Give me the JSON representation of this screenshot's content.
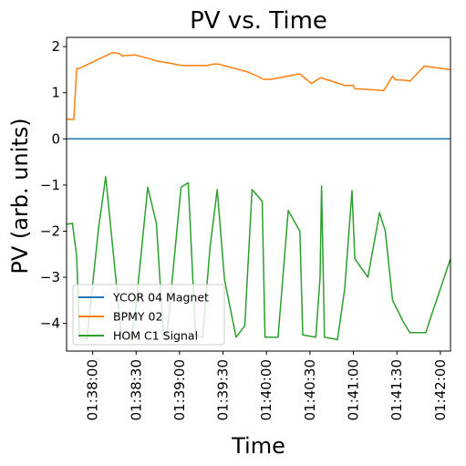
{
  "chart_data": {
    "type": "line",
    "title": "PV vs. Time",
    "xlabel": "Time",
    "ylabel": "PV (arb. units)",
    "xlim": [
      -3,
      262
    ],
    "ylim": [
      -4.6,
      2.2
    ],
    "x_ticks": [
      {
        "value": 15,
        "label": "01:38:00"
      },
      {
        "value": 45,
        "label": "01:38:30"
      },
      {
        "value": 75,
        "label": "01:39:00"
      },
      {
        "value": 105,
        "label": "01:39:30"
      },
      {
        "value": 135,
        "label": "01:40:00"
      },
      {
        "value": 165,
        "label": "01:40:30"
      },
      {
        "value": 195,
        "label": "01:41:00"
      },
      {
        "value": 225,
        "label": "01:41:30"
      },
      {
        "value": 255,
        "label": "01:42:00"
      }
    ],
    "y_ticks": [
      {
        "value": 2,
        "label": "2"
      },
      {
        "value": 1,
        "label": "1"
      },
      {
        "value": 0,
        "label": "0"
      },
      {
        "value": -1,
        "label": "−1"
      },
      {
        "value": -2,
        "label": "−2"
      },
      {
        "value": -3,
        "label": "−3"
      },
      {
        "value": -4,
        "label": "−4"
      }
    ],
    "legend_position": "lower-left",
    "series": [
      {
        "name": "YCOR 04 Magnet",
        "color": "#1f77b4",
        "x": [
          -3,
          262
        ],
        "y": [
          0,
          0
        ]
      },
      {
        "name": "BPMY 02",
        "color": "#ff7f0e",
        "x": [
          -3,
          1,
          2,
          4,
          6,
          28,
          30,
          34,
          35,
          44,
          53,
          56,
          60,
          61,
          77,
          94,
          98,
          102,
          122,
          130,
          133,
          138,
          158,
          166,
          172,
          173,
          189,
          195,
          196,
          216,
          222,
          224,
          231,
          234,
          244,
          248,
          262
        ],
        "y": [
          0.43,
          0.42,
          0.42,
          1.52,
          1.53,
          1.86,
          1.87,
          1.84,
          1.8,
          1.82,
          1.75,
          1.72,
          1.68,
          1.68,
          1.59,
          1.59,
          1.62,
          1.62,
          1.45,
          1.34,
          1.29,
          1.29,
          1.41,
          1.2,
          1.32,
          1.32,
          1.16,
          1.16,
          1.09,
          1.05,
          1.36,
          1.28,
          1.27,
          1.25,
          1.58,
          1.56,
          1.5
        ]
      },
      {
        "name": "HOM C1 Signal",
        "color": "#2ca02c",
        "x": [
          -3,
          1,
          4,
          6,
          11,
          19,
          24,
          35,
          41,
          44,
          53,
          59,
          64,
          66,
          76,
          81,
          86,
          91,
          96,
          101,
          106,
          114,
          120,
          125,
          132,
          134,
          143,
          150,
          158,
          160,
          169,
          172,
          173,
          175,
          184,
          189,
          194,
          196,
          205,
          213,
          217,
          222,
          230,
          234,
          245,
          248,
          262
        ],
        "y": [
          -1.85,
          -1.83,
          -2.55,
          -4.3,
          -4.35,
          -1.95,
          -0.82,
          -4.3,
          -4.35,
          -3.9,
          -1.05,
          -1.83,
          -4.3,
          -4.35,
          -1.05,
          -0.95,
          -4.25,
          -4.3,
          -2.35,
          -1.1,
          -3.05,
          -4.3,
          -4.05,
          -1.1,
          -1.35,
          -4.3,
          -4.3,
          -1.55,
          -2.0,
          -4.25,
          -4.3,
          -3.0,
          -1.02,
          -4.3,
          -4.35,
          -3.25,
          -1.12,
          -2.6,
          -3.0,
          -1.6,
          -2.0,
          -3.5,
          -4.0,
          -4.2,
          -4.2,
          -3.9,
          -2.6
        ]
      }
    ]
  }
}
